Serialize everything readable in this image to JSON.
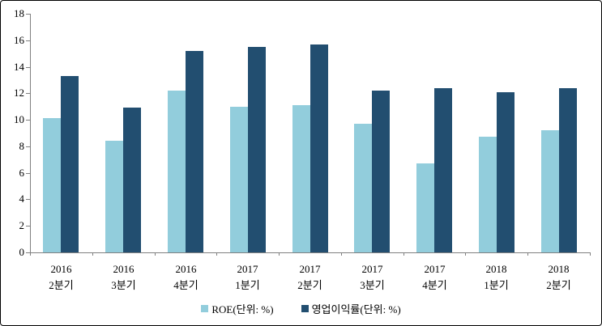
{
  "chart_data": {
    "type": "bar",
    "categories": [
      {
        "top": "2016",
        "bottom": "2분기"
      },
      {
        "top": "2016",
        "bottom": "3분기"
      },
      {
        "top": "2016",
        "bottom": "4분기"
      },
      {
        "top": "2017",
        "bottom": "1분기"
      },
      {
        "top": "2017",
        "bottom": "2분기"
      },
      {
        "top": "2017",
        "bottom": "3분기"
      },
      {
        "top": "2017",
        "bottom": "4분기"
      },
      {
        "top": "2018",
        "bottom": "1분기"
      },
      {
        "top": "2018",
        "bottom": "2분기"
      }
    ],
    "series": [
      {
        "name": "ROE(단위: %)",
        "color": "#92CDDC",
        "values": [
          10.1,
          8.4,
          12.2,
          11.0,
          11.1,
          9.7,
          6.7,
          8.7,
          9.2
        ]
      },
      {
        "name": "영업이익률(단위: %)",
        "color": "#224E70",
        "values": [
          13.3,
          10.9,
          15.2,
          15.5,
          15.7,
          12.2,
          12.4,
          12.1,
          12.4
        ]
      }
    ],
    "ylim": [
      0,
      18
    ],
    "yticks": [
      0,
      2,
      4,
      6,
      8,
      10,
      12,
      14,
      16,
      18
    ],
    "grid": false,
    "legend_position": "bottom",
    "axis_color": "#808080",
    "plot_background": "#FFFFFF",
    "frame_border_color": "#000000"
  }
}
